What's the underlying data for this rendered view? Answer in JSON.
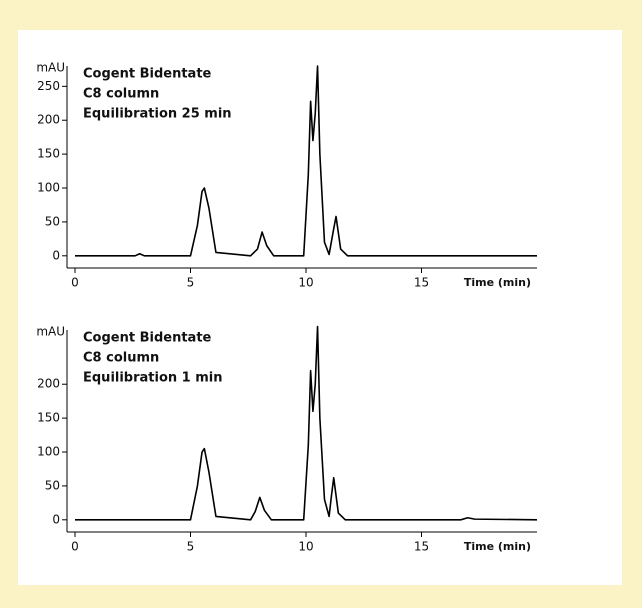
{
  "chart_data": [
    {
      "type": "line",
      "ylabel": "mAU",
      "xlabel": "Time (min)",
      "annotations": [
        "Cogent Bidentate",
        "C8 column",
        "Equilibration 25 min"
      ],
      "x": [
        0,
        2.6,
        2.8,
        3.0,
        5.0,
        5.3,
        5.5,
        5.6,
        5.8,
        6.1,
        7.6,
        7.9,
        8.1,
        8.3,
        8.6,
        9.9,
        10.1,
        10.2,
        10.3,
        10.4,
        10.5,
        10.6,
        10.8,
        11.0,
        11.2,
        11.3,
        11.5,
        11.8,
        20
      ],
      "series": [
        {
          "color": "#000000",
          "values": [
            0,
            0,
            3,
            0,
            0,
            45,
            95,
            100,
            70,
            5,
            0,
            10,
            35,
            15,
            0,
            0,
            120,
            228,
            170,
            210,
            280,
            150,
            20,
            2,
            40,
            58,
            10,
            0,
            0
          ]
        }
      ],
      "xlim": [
        0,
        20
      ],
      "xticks": [
        0,
        5,
        10,
        15
      ],
      "ylim": [
        -18,
        280
      ],
      "yticks": [
        0,
        50,
        100,
        150,
        200,
        250
      ]
    },
    {
      "type": "line",
      "ylabel": "mAU",
      "xlabel": "Time (min)",
      "annotations": [
        "Cogent Bidentate",
        "C8 column",
        "Equilibration 1 min"
      ],
      "x": [
        0,
        5.0,
        5.3,
        5.5,
        5.6,
        5.8,
        6.1,
        7.6,
        7.8,
        8.0,
        8.2,
        8.5,
        9.9,
        10.1,
        10.2,
        10.3,
        10.4,
        10.5,
        10.6,
        10.8,
        11.0,
        11.1,
        11.2,
        11.4,
        11.7,
        16.7,
        17.0,
        17.3,
        20
      ],
      "series": [
        {
          "color": "#000000",
          "values": [
            0,
            0,
            50,
            100,
            105,
            70,
            5,
            0,
            12,
            33,
            14,
            0,
            0,
            110,
            220,
            160,
            200,
            285,
            150,
            30,
            5,
            35,
            62,
            10,
            0,
            0,
            3,
            1,
            0
          ]
        }
      ],
      "xlim": [
        0,
        20
      ],
      "xticks": [
        0,
        5,
        10,
        15
      ],
      "ylim": [
        -18,
        280
      ],
      "yticks": [
        0,
        50,
        100,
        150,
        200
      ]
    }
  ]
}
